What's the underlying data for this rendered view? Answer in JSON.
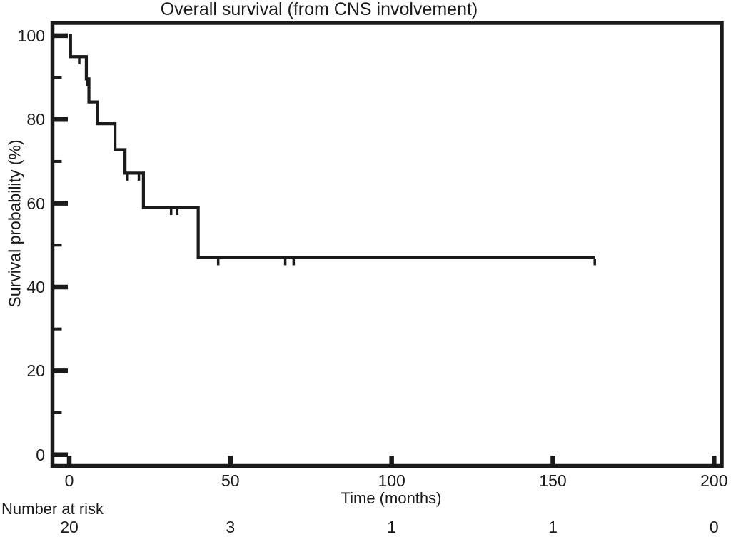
{
  "figure": {
    "background": "#ffffff",
    "line_color": "#1a1a1a",
    "text_color": "#1a1a1a"
  },
  "chart_data": {
    "type": "line",
    "subtype": "kaplan-meier-step-curve",
    "title": "Overall survival (from CNS involvement)",
    "xlabel": "Time (months)",
    "ylabel": "Survival probability (%)",
    "xlim": [
      0,
      200
    ],
    "ylim": [
      0,
      100
    ],
    "x_ticks": [
      0,
      50,
      100,
      150,
      200
    ],
    "y_ticks_major": [
      0,
      20,
      40,
      60,
      80,
      100
    ],
    "y_ticks_minor": [
      10,
      30,
      50,
      70,
      90
    ],
    "grid": false,
    "legend": false,
    "series": [
      {
        "name": "Overall survival",
        "color": "#1a1a1a",
        "steps_time_percent": [
          [
            0,
            100
          ],
          [
            0.4,
            95
          ],
          [
            5.3,
            89.7
          ],
          [
            6.1,
            84.2
          ],
          [
            8.7,
            79.0
          ],
          [
            14.2,
            72.8
          ],
          [
            17.3,
            67.2
          ],
          [
            23,
            59.0
          ],
          [
            40,
            47.0
          ]
        ],
        "end_time": 163,
        "censor_marks_time_percent": [
          [
            3.1,
            95
          ],
          [
            5.5,
            89.7
          ],
          [
            18.1,
            67.2
          ],
          [
            21.6,
            67.2
          ],
          [
            31.6,
            59.0
          ],
          [
            33.5,
            59.0
          ],
          [
            46.2,
            47.0
          ],
          [
            67,
            47.0
          ],
          [
            69.6,
            47.0
          ],
          [
            163,
            47.0
          ]
        ]
      }
    ],
    "number_at_risk": {
      "label": "Number at risk",
      "times": [
        0,
        50,
        100,
        150,
        200
      ],
      "values": [
        "20",
        "3",
        "1",
        "1",
        "0"
      ]
    }
  }
}
